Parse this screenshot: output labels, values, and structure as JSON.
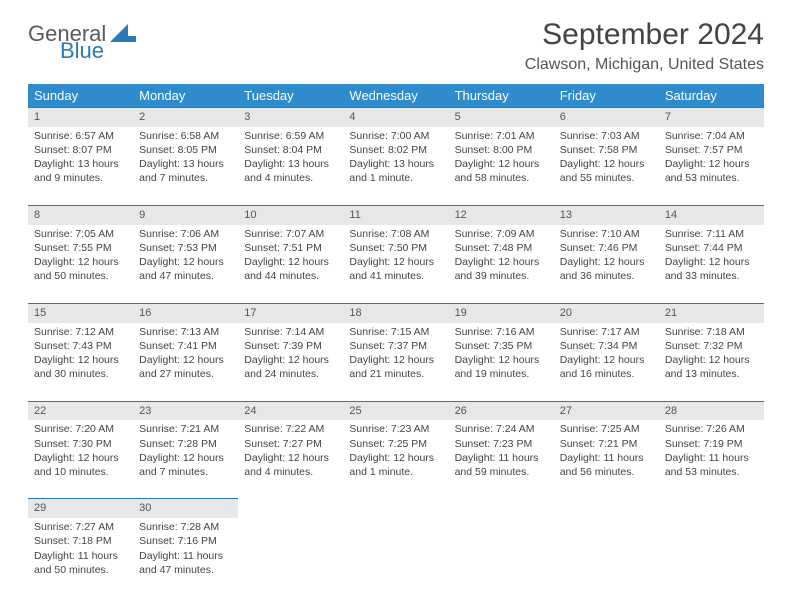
{
  "brand": {
    "text_general": "General",
    "text_blue": "Blue",
    "icon_fill": "#2a7ab8"
  },
  "header": {
    "month_title": "September 2024",
    "location": "Clawson, Michigan, United States"
  },
  "styles": {
    "header_bg": "#2e8bcc",
    "header_text": "#ffffff",
    "band_bg": "#e6e7e8",
    "band_border": "#2a7ab8",
    "body_text": "#444444",
    "title_fontsize": 30,
    "location_fontsize": 16,
    "th_fontsize": 13,
    "cell_fontsize": 10.5
  },
  "weekdays": [
    "Sunday",
    "Monday",
    "Tuesday",
    "Wednesday",
    "Thursday",
    "Friday",
    "Saturday"
  ],
  "weeks": [
    [
      {
        "day": "1",
        "sunrise": "Sunrise: 6:57 AM",
        "sunset": "Sunset: 8:07 PM",
        "daylight": "Daylight: 13 hours and 9 minutes."
      },
      {
        "day": "2",
        "sunrise": "Sunrise: 6:58 AM",
        "sunset": "Sunset: 8:05 PM",
        "daylight": "Daylight: 13 hours and 7 minutes."
      },
      {
        "day": "3",
        "sunrise": "Sunrise: 6:59 AM",
        "sunset": "Sunset: 8:04 PM",
        "daylight": "Daylight: 13 hours and 4 minutes."
      },
      {
        "day": "4",
        "sunrise": "Sunrise: 7:00 AM",
        "sunset": "Sunset: 8:02 PM",
        "daylight": "Daylight: 13 hours and 1 minute."
      },
      {
        "day": "5",
        "sunrise": "Sunrise: 7:01 AM",
        "sunset": "Sunset: 8:00 PM",
        "daylight": "Daylight: 12 hours and 58 minutes."
      },
      {
        "day": "6",
        "sunrise": "Sunrise: 7:03 AM",
        "sunset": "Sunset: 7:58 PM",
        "daylight": "Daylight: 12 hours and 55 minutes."
      },
      {
        "day": "7",
        "sunrise": "Sunrise: 7:04 AM",
        "sunset": "Sunset: 7:57 PM",
        "daylight": "Daylight: 12 hours and 53 minutes."
      }
    ],
    [
      {
        "day": "8",
        "sunrise": "Sunrise: 7:05 AM",
        "sunset": "Sunset: 7:55 PM",
        "daylight": "Daylight: 12 hours and 50 minutes."
      },
      {
        "day": "9",
        "sunrise": "Sunrise: 7:06 AM",
        "sunset": "Sunset: 7:53 PM",
        "daylight": "Daylight: 12 hours and 47 minutes."
      },
      {
        "day": "10",
        "sunrise": "Sunrise: 7:07 AM",
        "sunset": "Sunset: 7:51 PM",
        "daylight": "Daylight: 12 hours and 44 minutes."
      },
      {
        "day": "11",
        "sunrise": "Sunrise: 7:08 AM",
        "sunset": "Sunset: 7:50 PM",
        "daylight": "Daylight: 12 hours and 41 minutes."
      },
      {
        "day": "12",
        "sunrise": "Sunrise: 7:09 AM",
        "sunset": "Sunset: 7:48 PM",
        "daylight": "Daylight: 12 hours and 39 minutes."
      },
      {
        "day": "13",
        "sunrise": "Sunrise: 7:10 AM",
        "sunset": "Sunset: 7:46 PM",
        "daylight": "Daylight: 12 hours and 36 minutes."
      },
      {
        "day": "14",
        "sunrise": "Sunrise: 7:11 AM",
        "sunset": "Sunset: 7:44 PM",
        "daylight": "Daylight: 12 hours and 33 minutes."
      }
    ],
    [
      {
        "day": "15",
        "sunrise": "Sunrise: 7:12 AM",
        "sunset": "Sunset: 7:43 PM",
        "daylight": "Daylight: 12 hours and 30 minutes."
      },
      {
        "day": "16",
        "sunrise": "Sunrise: 7:13 AM",
        "sunset": "Sunset: 7:41 PM",
        "daylight": "Daylight: 12 hours and 27 minutes."
      },
      {
        "day": "17",
        "sunrise": "Sunrise: 7:14 AM",
        "sunset": "Sunset: 7:39 PM",
        "daylight": "Daylight: 12 hours and 24 minutes."
      },
      {
        "day": "18",
        "sunrise": "Sunrise: 7:15 AM",
        "sunset": "Sunset: 7:37 PM",
        "daylight": "Daylight: 12 hours and 21 minutes."
      },
      {
        "day": "19",
        "sunrise": "Sunrise: 7:16 AM",
        "sunset": "Sunset: 7:35 PM",
        "daylight": "Daylight: 12 hours and 19 minutes."
      },
      {
        "day": "20",
        "sunrise": "Sunrise: 7:17 AM",
        "sunset": "Sunset: 7:34 PM",
        "daylight": "Daylight: 12 hours and 16 minutes."
      },
      {
        "day": "21",
        "sunrise": "Sunrise: 7:18 AM",
        "sunset": "Sunset: 7:32 PM",
        "daylight": "Daylight: 12 hours and 13 minutes."
      }
    ],
    [
      {
        "day": "22",
        "sunrise": "Sunrise: 7:20 AM",
        "sunset": "Sunset: 7:30 PM",
        "daylight": "Daylight: 12 hours and 10 minutes."
      },
      {
        "day": "23",
        "sunrise": "Sunrise: 7:21 AM",
        "sunset": "Sunset: 7:28 PM",
        "daylight": "Daylight: 12 hours and 7 minutes."
      },
      {
        "day": "24",
        "sunrise": "Sunrise: 7:22 AM",
        "sunset": "Sunset: 7:27 PM",
        "daylight": "Daylight: 12 hours and 4 minutes."
      },
      {
        "day": "25",
        "sunrise": "Sunrise: 7:23 AM",
        "sunset": "Sunset: 7:25 PM",
        "daylight": "Daylight: 12 hours and 1 minute."
      },
      {
        "day": "26",
        "sunrise": "Sunrise: 7:24 AM",
        "sunset": "Sunset: 7:23 PM",
        "daylight": "Daylight: 11 hours and 59 minutes."
      },
      {
        "day": "27",
        "sunrise": "Sunrise: 7:25 AM",
        "sunset": "Sunset: 7:21 PM",
        "daylight": "Daylight: 11 hours and 56 minutes."
      },
      {
        "day": "28",
        "sunrise": "Sunrise: 7:26 AM",
        "sunset": "Sunset: 7:19 PM",
        "daylight": "Daylight: 11 hours and 53 minutes."
      }
    ],
    [
      {
        "day": "29",
        "sunrise": "Sunrise: 7:27 AM",
        "sunset": "Sunset: 7:18 PM",
        "daylight": "Daylight: 11 hours and 50 minutes."
      },
      {
        "day": "30",
        "sunrise": "Sunrise: 7:28 AM",
        "sunset": "Sunset: 7:16 PM",
        "daylight": "Daylight: 11 hours and 47 minutes."
      },
      null,
      null,
      null,
      null,
      null
    ]
  ]
}
